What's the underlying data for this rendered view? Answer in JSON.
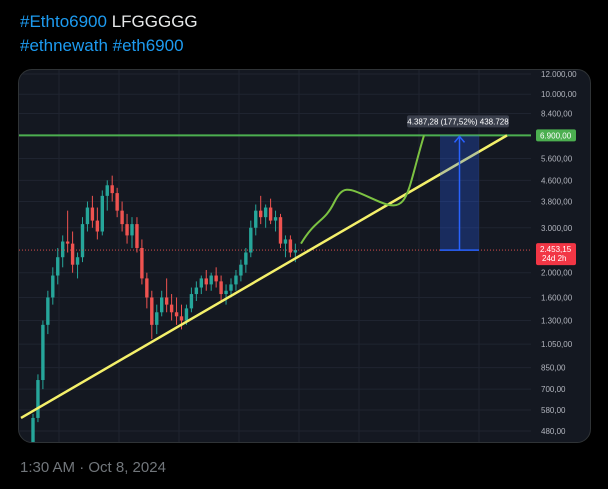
{
  "post": {
    "tag1": "#Ethto6900",
    "text1": " LFGGGGG",
    "tag2": "#ethnewath",
    "tag3": "#eth6900",
    "timestamp": "1:30 AM · Oct 8, 2024"
  },
  "colors": {
    "bull": "#26a69a",
    "bear": "#ef5350",
    "target_line": "#4caf50",
    "trend_line": "#f4f06a",
    "projection": "#7cc242",
    "measure_box": "#2962ff"
  },
  "chart_data": {
    "type": "candlestick",
    "scale": "log",
    "y_ticks": [
      "12.000,00",
      "10.000,00",
      "8.400,00",
      "6.900,00",
      "5.600,00",
      "4.600,00",
      "3.800,00",
      "3.000,00",
      "2.453,15",
      "2.000,00",
      "1.600,00",
      "1.300,00",
      "1.050,00",
      "850,00",
      "700,00",
      "580,00",
      "480,00"
    ],
    "y_tick_values": [
      12000,
      10000,
      8400,
      6900,
      5600,
      4600,
      3800,
      3000,
      2453.15,
      2000,
      1600,
      1300,
      1050,
      850,
      700,
      580,
      480
    ],
    "target_price": 6900,
    "target_label": "6.900,00",
    "current_price": 2453.15,
    "current_label": "2.453,15",
    "current_countdown": "24d 2h",
    "measure_label": "4.387,28 (177,52%) 438.728",
    "candles": [
      [
        420,
        560,
        410,
        540
      ],
      [
        540,
        800,
        520,
        760
      ],
      [
        760,
        1300,
        700,
        1250
      ],
      [
        1250,
        1700,
        1150,
        1600
      ],
      [
        1600,
        2100,
        1500,
        1950
      ],
      [
        1950,
        2500,
        1800,
        2300
      ],
      [
        2300,
        2800,
        2100,
        2650
      ],
      [
        2650,
        3500,
        2400,
        2600
      ],
      [
        2600,
        2900,
        2000,
        2150
      ],
      [
        2150,
        2400,
        1900,
        2300
      ],
      [
        2300,
        3300,
        2200,
        3100
      ],
      [
        3100,
        3800,
        2900,
        3600
      ],
      [
        3600,
        4000,
        3000,
        3200
      ],
      [
        3200,
        3600,
        2700,
        2900
      ],
      [
        2900,
        4200,
        2800,
        4000
      ],
      [
        4000,
        4600,
        3500,
        4400
      ],
      [
        4400,
        4800,
        3800,
        4100
      ],
      [
        4100,
        4300,
        3300,
        3500
      ],
      [
        3500,
        3800,
        2900,
        3100
      ],
      [
        3100,
        3400,
        2600,
        2800
      ],
      [
        2800,
        3300,
        2500,
        3100
      ],
      [
        3100,
        3300,
        2400,
        2500
      ],
      [
        2500,
        2700,
        1800,
        1900
      ],
      [
        1900,
        2000,
        1450,
        1600
      ],
      [
        1600,
        1700,
        1100,
        1250
      ],
      [
        1250,
        1500,
        1150,
        1400
      ],
      [
        1400,
        1700,
        1350,
        1600
      ],
      [
        1600,
        1900,
        1400,
        1500
      ],
      [
        1500,
        1650,
        1300,
        1400
      ],
      [
        1400,
        1600,
        1250,
        1350
      ],
      [
        1350,
        1500,
        1200,
        1300
      ],
      [
        1300,
        1500,
        1250,
        1450
      ],
      [
        1450,
        1750,
        1400,
        1650
      ],
      [
        1650,
        1850,
        1550,
        1750
      ],
      [
        1750,
        1950,
        1650,
        1900
      ],
      [
        1900,
        2050,
        1700,
        1800
      ],
      [
        1800,
        2000,
        1700,
        1950
      ],
      [
        1950,
        2100,
        1750,
        1850
      ],
      [
        1850,
        1950,
        1550,
        1650
      ],
      [
        1650,
        1800,
        1500,
        1700
      ],
      [
        1700,
        1900,
        1600,
        1800
      ],
      [
        1800,
        2050,
        1700,
        1950
      ],
      [
        1950,
        2250,
        1850,
        2150
      ],
      [
        2150,
        2500,
        2000,
        2400
      ],
      [
        2400,
        3200,
        2300,
        3000
      ],
      [
        3000,
        3700,
        2800,
        3500
      ],
      [
        3500,
        4000,
        3100,
        3300
      ],
      [
        3300,
        3700,
        3000,
        3600
      ],
      [
        3600,
        3900,
        3100,
        3200
      ],
      [
        3200,
        3500,
        2900,
        3300
      ],
      [
        3300,
        3400,
        2500,
        2600
      ],
      [
        2600,
        2800,
        2300,
        2700
      ],
      [
        2700,
        2800,
        2300,
        2400
      ],
      [
        2400,
        2600,
        2200,
        2453
      ]
    ],
    "projection_path": [
      [
        2600,
        "start"
      ],
      [
        3000,
        "mid"
      ],
      [
        3900,
        "peak"
      ],
      [
        3800,
        "dip"
      ],
      [
        6900,
        "end"
      ]
    ]
  }
}
